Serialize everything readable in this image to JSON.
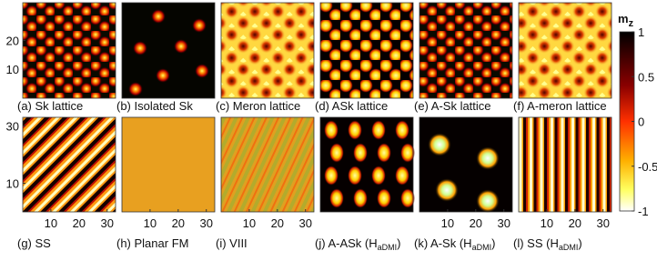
{
  "panels": [
    {
      "label": "(a) Sk lattice"
    },
    {
      "label": "(b) Isolated Sk"
    },
    {
      "label": "(c) Meron lattice"
    },
    {
      "label": "(d) ASk lattice"
    },
    {
      "label": "(e) A-Sk lattice"
    },
    {
      "label": "(f) A-meron lattice"
    },
    {
      "label": "(g) SS"
    },
    {
      "label": "(h) Planar FM"
    },
    {
      "label": "(i) VIII"
    },
    {
      "label": "(j) A-ASk (H",
      "sub": "aDMI",
      "tail": ")"
    },
    {
      "label": "(k) A-Sk (H",
      "sub": "aDMI",
      "tail": ")"
    },
    {
      "label": "(l) SS (H",
      "sub": "aDMI",
      "tail": ")"
    }
  ],
  "axis_lim": [
    0,
    33
  ],
  "row1_yticks": [
    20,
    10
  ],
  "row2_yticks": [
    30,
    10
  ],
  "xticks": [
    10,
    20,
    30
  ],
  "colorbar": {
    "label": "m",
    "sub": "z",
    "lim": [
      -1,
      1
    ],
    "ticks": [
      1,
      0.5,
      0,
      -0.5,
      -1
    ]
  }
}
